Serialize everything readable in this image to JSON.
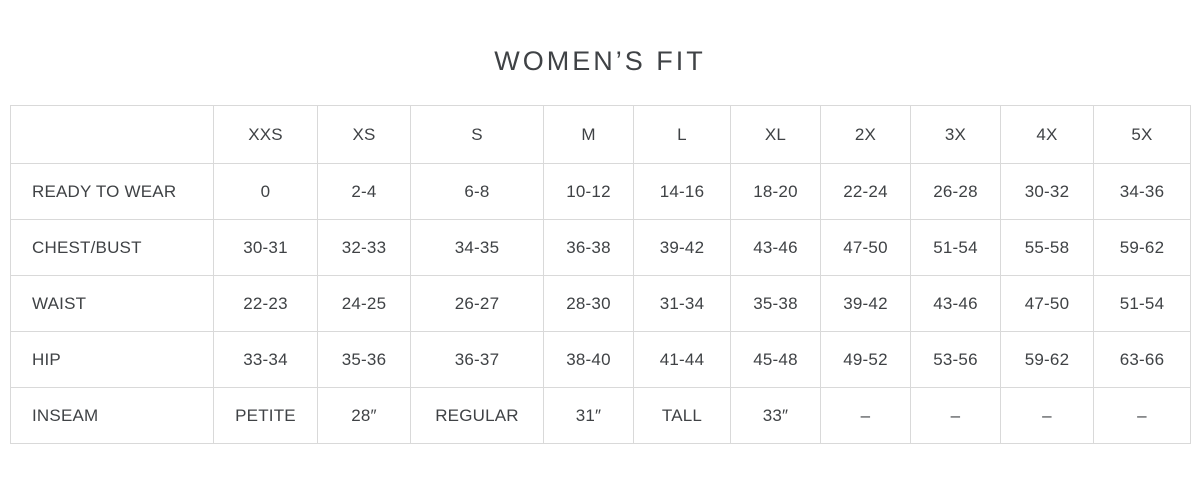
{
  "page": {
    "title": "WOMEN’S FIT"
  },
  "colors": {
    "text": "#3f4245",
    "border": "#d9d9d9",
    "background": "#ffffff"
  },
  "chart_data": {
    "type": "table",
    "title": "WOMEN’S FIT",
    "columns": [
      "",
      "XXS",
      "XS",
      "S",
      "M",
      "L",
      "XL",
      "2X",
      "3X",
      "4X",
      "5X"
    ],
    "rows": [
      {
        "label": "READY TO WEAR",
        "values": [
          "0",
          "2-4",
          "6-8",
          "10-12",
          "14-16",
          "18-20",
          "22-24",
          "26-28",
          "30-32",
          "34-36"
        ]
      },
      {
        "label": "CHEST/BUST",
        "values": [
          "30-31",
          "32-33",
          "34-35",
          "36-38",
          "39-42",
          "43-46",
          "47-50",
          "51-54",
          "55-58",
          "59-62"
        ]
      },
      {
        "label": "WAIST",
        "values": [
          "22-23",
          "24-25",
          "26-27",
          "28-30",
          "31-34",
          "35-38",
          "39-42",
          "43-46",
          "47-50",
          "51-54"
        ]
      },
      {
        "label": "HIP",
        "values": [
          "33-34",
          "35-36",
          "36-37",
          "38-40",
          "41-44",
          "45-48",
          "49-52",
          "53-56",
          "59-62",
          "63-66"
        ]
      },
      {
        "label": "INSEAM",
        "values": [
          "PETITE",
          "28″",
          "REGULAR",
          "31″",
          "TALL",
          "33″",
          "–",
          "–",
          "–",
          "–"
        ]
      }
    ]
  }
}
